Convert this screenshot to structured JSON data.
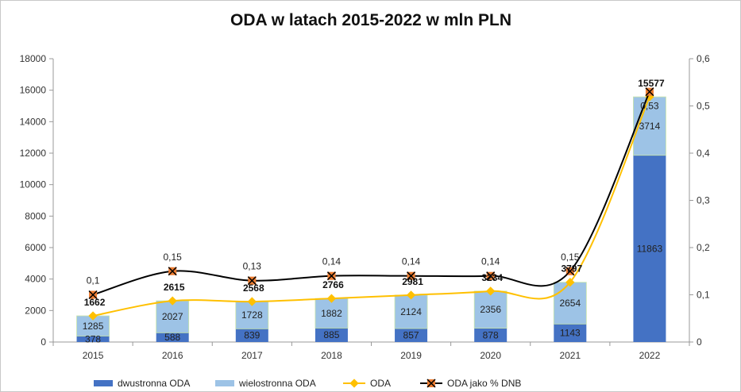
{
  "chart_data": {
    "type": "bar",
    "title": "ODA w latach 2015-2022 w mln PLN",
    "categories": [
      "2015",
      "2016",
      "2017",
      "2018",
      "2019",
      "2020",
      "2021",
      "2022"
    ],
    "series": [
      {
        "name": "dwustronna ODA",
        "kind": "stacked-bar",
        "axis": "left",
        "values": [
          378,
          588,
          839,
          885,
          857,
          878,
          1143,
          11863
        ]
      },
      {
        "name": "wielostronna ODA",
        "kind": "stacked-bar",
        "axis": "left",
        "values": [
          1285,
          2027,
          1728,
          1882,
          2124,
          2356,
          2654,
          3714
        ]
      },
      {
        "name": "ODA",
        "kind": "line",
        "axis": "left",
        "values": [
          1662,
          2615,
          2568,
          2766,
          2981,
          3234,
          3797,
          15577
        ]
      },
      {
        "name": "ODA jako % DNB",
        "kind": "line",
        "axis": "right",
        "values": [
          0.1,
          0.15,
          0.13,
          0.14,
          0.14,
          0.14,
          0.15,
          0.53
        ]
      }
    ],
    "total_labels": [
      "1662",
      "2615",
      "2568",
      "2766",
      "2981",
      "3234",
      "3797",
      "15577"
    ],
    "pct_labels": [
      "0,1",
      "0,15",
      "0,13",
      "0,14",
      "0,14",
      "0,14",
      "0,15",
      "0,53"
    ],
    "y_left": {
      "min": 0,
      "max": 18000,
      "ticks": [
        "0",
        "2000",
        "4000",
        "6000",
        "8000",
        "10000",
        "12000",
        "14000",
        "16000",
        "18000"
      ]
    },
    "y_right": {
      "min": 0,
      "max": 0.6,
      "ticks": [
        "0",
        "0,1",
        "0,2",
        "0,3",
        "0,4",
        "0,5",
        "0,6"
      ]
    },
    "legend_position": "bottom",
    "grid": false,
    "colors": {
      "bilateral": "#4472c4",
      "multilateral": "#9dc3e6",
      "oda_line": "#ffc000",
      "pct_line": "#000000",
      "pct_marker": "#ed7d31"
    }
  }
}
